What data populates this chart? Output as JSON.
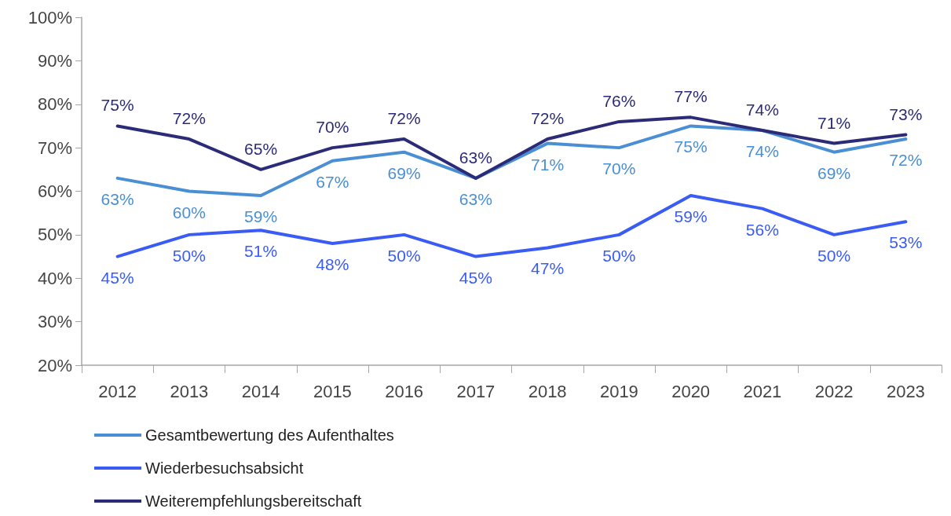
{
  "chart_data": {
    "type": "line",
    "categories": [
      "2012",
      "2013",
      "2014",
      "2015",
      "2016",
      "2017",
      "2018",
      "2019",
      "2020",
      "2021",
      "2022",
      "2023"
    ],
    "series": [
      {
        "name": "Gesamtbewertung des Aufenthaltes",
        "color": "#4a8fd4",
        "values": [
          63,
          60,
          59,
          67,
          69,
          63,
          71,
          70,
          75,
          74,
          69,
          72
        ],
        "value_labels": [
          "63%",
          "60%",
          "59%",
          "67%",
          "69%",
          "63%",
          "71%",
          "70%",
          "75%",
          "74%",
          "69%",
          "72%"
        ]
      },
      {
        "name": "Wiederbesuchsabsicht",
        "color": "#3a5cf5",
        "values": [
          45,
          50,
          51,
          48,
          50,
          45,
          47,
          50,
          59,
          56,
          50,
          53
        ],
        "value_labels": [
          "45%",
          "50%",
          "51%",
          "48%",
          "50%",
          "45%",
          "47%",
          "50%",
          "59%",
          "56%",
          "50%",
          "53%"
        ]
      },
      {
        "name": "Weiterempfehlungsbereitschaft",
        "color": "#2b2b78",
        "values": [
          75,
          72,
          65,
          70,
          72,
          63,
          72,
          76,
          77,
          74,
          71,
          73
        ],
        "value_labels": [
          "75%",
          "72%",
          "65%",
          "70%",
          "72%",
          "63%",
          "72%",
          "76%",
          "77%",
          "74%",
          "71%",
          "73%"
        ]
      }
    ],
    "ylim": [
      20,
      100
    ],
    "yticks": [
      {
        "value": 20,
        "label": "20%"
      },
      {
        "value": 30,
        "label": "30%"
      },
      {
        "value": 40,
        "label": "40%"
      },
      {
        "value": 50,
        "label": "50%"
      },
      {
        "value": 60,
        "label": "60%"
      },
      {
        "value": 70,
        "label": "70%"
      },
      {
        "value": 80,
        "label": "80%"
      },
      {
        "value": 90,
        "label": "90%"
      },
      {
        "value": 100,
        "label": "100%"
      }
    ],
    "grid": false,
    "legend": "bottom left",
    "marker": "none",
    "line_style": "solid"
  }
}
